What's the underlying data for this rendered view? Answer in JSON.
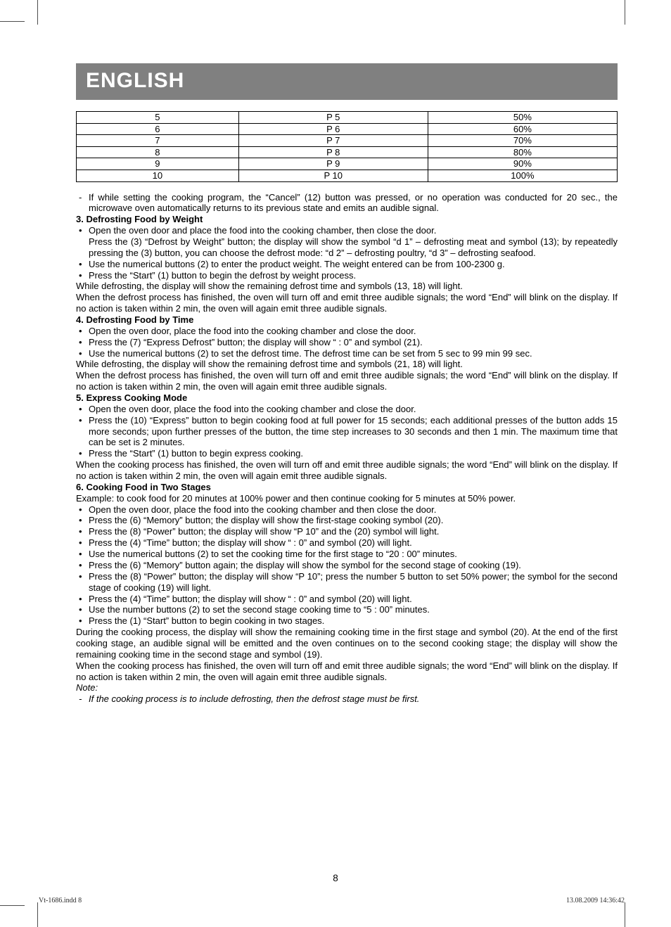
{
  "header": {
    "title": "ENGLISH"
  },
  "power_table": {
    "col_widths": [
      "30%",
      "35%",
      "35%"
    ],
    "rows": [
      [
        "5",
        "P 5",
        "50%"
      ],
      [
        "6",
        "P 6",
        "60%"
      ],
      [
        "7",
        "P 7",
        "70%"
      ],
      [
        "8",
        "P 8",
        "80%"
      ],
      [
        "9",
        "P 9",
        "90%"
      ],
      [
        "10",
        "P 10",
        "100%"
      ]
    ]
  },
  "intro_dash": "If while setting the cooking program, the “Cancel” (12) button was pressed, or no operation was conducted for 20 sec., the microwave oven automatically returns to its previous state and emits an audible signal.",
  "s3": {
    "title": "3. Defrosting Food by Weight",
    "b1": "Open the oven door and place the food into the cooking chamber, then close the door.",
    "b1b": "Press the (3) “Defrost by Weight” button; the display will show the symbol “d 1” – defrosting meat and symbol (13); by repeatedly pressing the (3) button, you can choose the defrost mode: “d 2” – defrosting poultry, “d 3” – defrosting seafood.",
    "b2": "Use the numerical buttons (2) to enter the product weight. The weight entered can be from 100-2300 g.",
    "b3": "Press the “Start” (1) button to begin the defrost by weight process.",
    "p1": "While defrosting, the display will show the remaining defrost time and symbols (13, 18) will light.",
    "p2": "When the defrost process has finished, the oven will turn off and emit three audible signals; the word “End” will blink on the display. If no action is taken within 2 min, the oven will again emit three audible signals."
  },
  "s4": {
    "title": "4. Defrosting Food by Time",
    "b1": "Open the oven door, place the food into the cooking chamber and close the door.",
    "b2": "Press the (7) “Express Defrost” button; the display will show “ : 0” and symbol (21).",
    "b3": "Use the numerical buttons (2) to set the defrost time. The defrost time can be set from 5 sec to 99 min 99 sec.",
    "p1": "While defrosting, the display will show the remaining defrost time and symbols (21, 18) will light.",
    "p2": "When the defrost process has finished, the oven will turn off and emit three audible signals; the word “End” will blink on the display. If no action is taken within 2 min, the oven will again emit three audible signals."
  },
  "s5": {
    "title": "5. Express Cooking Mode",
    "b1": "Open the oven door, place the food into the cooking chamber and close the door.",
    "b2": "Press the (10) “Express” button to begin cooking food at full power for 15 seconds; each additional presses of the button adds 15 more seconds; upon further presses of the button, the time step increases to 30 seconds and then 1 min. The maximum time that can be set is 2 minutes.",
    "b3": "Press the “Start” (1) button to begin express cooking.",
    "p1": "When the cooking process has finished, the oven will turn off and emit three audible signals; the word “End” will blink on the display. If no action is taken within 2 min, the oven will again emit three audible signals."
  },
  "s6": {
    "title": "6. Cooking Food in Two Stages",
    "ex": "Example: to cook food for 20 minutes at 100% power and then continue cooking for 5 minutes at 50% power.",
    "b1": "Open the oven door, place the food into the cooking chamber and then close the door.",
    "b2": "Press the (6) “Memory” button; the display will show the first-stage cooking symbol (20).",
    "b3": "Press the (8) “Power” button; the display will show “P 10” and the (20) symbol will light.",
    "b4": "Press the (4) “Time” button; the display will show “ : 0” and symbol (20) will light.",
    "b5": "Use the numerical buttons (2) to set the cooking time for the first stage to “20 : 00” minutes.",
    "b6": "Press the (6) “Memory” button again; the display will show the symbol for the second stage of cooking (19).",
    "b7": "Press the (8) “Power” button; the display will show “P 10”; press the number 5 button to set 50% power; the symbol for the second stage of cooking (19) will light.",
    "b8": "Press the (4) “Time” button; the display will show “ : 0” and symbol (20) will light.",
    "b9": "Use the number buttons (2) to set the second stage cooking time to “5 : 00” minutes.",
    "b10": "Press the (1) “Start” button to begin cooking in two stages.",
    "p1": "During the cooking process, the display will show the remaining cooking time in the first stage and symbol (20). At the end of the first cooking stage, an audible signal will be emitted and the oven continues on to the second cooking stage; the display will show the remaining cooking time in the second stage and symbol (19).",
    "p2": "When the cooking process has finished, the oven will turn off and emit three audible signals; the word “End” will blink on the display. If no action is taken within 2 min, the oven will again emit three audible signals."
  },
  "note": {
    "label": "Note:",
    "line": "If the cooking process is to include defrosting, then the defrost stage must be first."
  },
  "page_number": "8",
  "footer": {
    "left": "Vt-1686.indd   8",
    "right": "13.08.2009   14:36:42"
  }
}
